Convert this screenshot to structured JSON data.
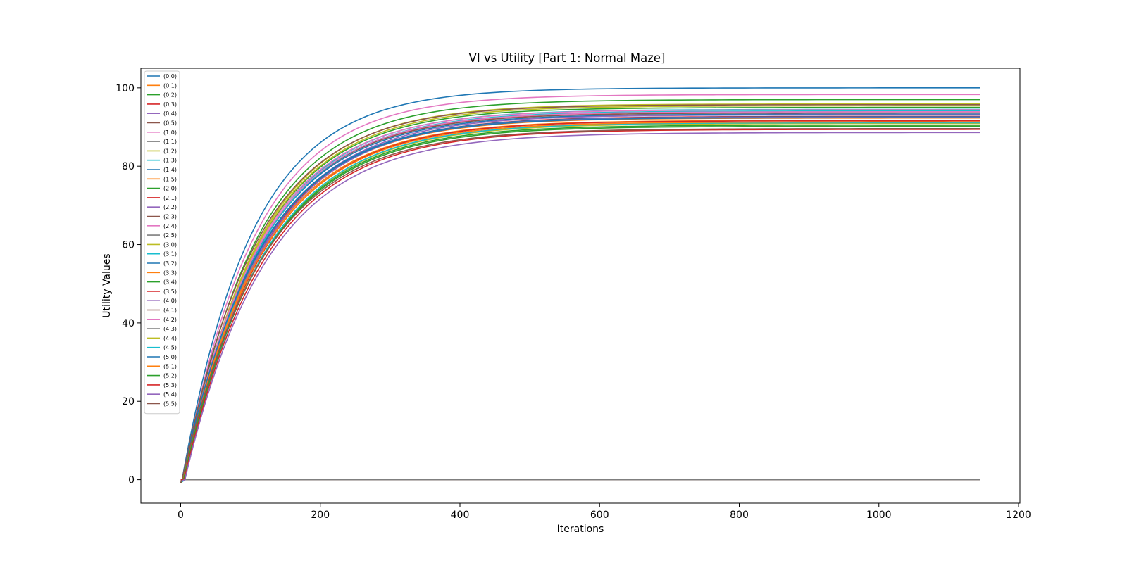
{
  "chart_data": {
    "type": "line",
    "title": "VI vs Utility [Part 1: Normal Maze]",
    "xlabel": "Iterations",
    "ylabel": "Utility Values",
    "xlim": [
      -57,
      1202
    ],
    "ylim": [
      -6,
      105
    ],
    "xticks": [
      0,
      200,
      400,
      600,
      800,
      1000,
      1200
    ],
    "yticks": [
      0,
      20,
      40,
      60,
      80,
      100
    ],
    "grid": false,
    "legend_position": "upper-left",
    "iterations": 1145,
    "palette": [
      "#1f77b4",
      "#ff7f0e",
      "#2ca02c",
      "#d62728",
      "#9467bd",
      "#8c564b",
      "#e377c2",
      "#7f7f7f",
      "#bcbd22",
      "#17becf"
    ],
    "series": [
      {
        "name": "(0,0)",
        "final": 100.0
      },
      {
        "name": "(0,1)",
        "final": 0.0
      },
      {
        "name": "(0,2)",
        "final": 95.0
      },
      {
        "name": "(0,3)",
        "final": 93.9
      },
      {
        "name": "(0,4)",
        "final": 92.7
      },
      {
        "name": "(0,5)",
        "final": 93.6
      },
      {
        "name": "(1,0)",
        "final": 98.3
      },
      {
        "name": "(1,1)",
        "final": 0.0
      },
      {
        "name": "(1,2)",
        "final": 95.9
      },
      {
        "name": "(1,3)",
        "final": 94.5
      },
      {
        "name": "(1,4)",
        "final": 93.3
      },
      {
        "name": "(1,5)",
        "final": 92.3
      },
      {
        "name": "(2,0)",
        "final": 97.0
      },
      {
        "name": "(2,1)",
        "final": 92.7
      },
      {
        "name": "(2,2)",
        "final": 93.1
      },
      {
        "name": "(2,3)",
        "final": 95.7
      },
      {
        "name": "(2,4)",
        "final": 94.4
      },
      {
        "name": "(2,5)",
        "final": 0.0
      },
      {
        "name": "(3,0)",
        "final": 95.4
      },
      {
        "name": "(3,1)",
        "final": 94.1
      },
      {
        "name": "(3,2)",
        "final": 92.6
      },
      {
        "name": "(3,3)",
        "final": 91.7
      },
      {
        "name": "(3,4)",
        "final": 90.5
      },
      {
        "name": "(3,5)",
        "final": 91.6
      },
      {
        "name": "(4,0)",
        "final": 92.5
      },
      {
        "name": "(4,1)",
        "final": 0.0
      },
      {
        "name": "(4,2)",
        "final": 93.9
      },
      {
        "name": "(4,3)",
        "final": 0.0
      },
      {
        "name": "(4,4)",
        "final": 90.9
      },
      {
        "name": "(4,5)",
        "final": 91.1
      },
      {
        "name": "(5,0)",
        "final": 92.4
      },
      {
        "name": "(5,1)",
        "final": 91.3
      },
      {
        "name": "(5,2)",
        "final": 90.2
      },
      {
        "name": "(5,3)",
        "final": 89.4
      },
      {
        "name": "(5,4)",
        "final": 88.6
      },
      {
        "name": "(5,5)",
        "final": 89.6
      }
    ]
  }
}
